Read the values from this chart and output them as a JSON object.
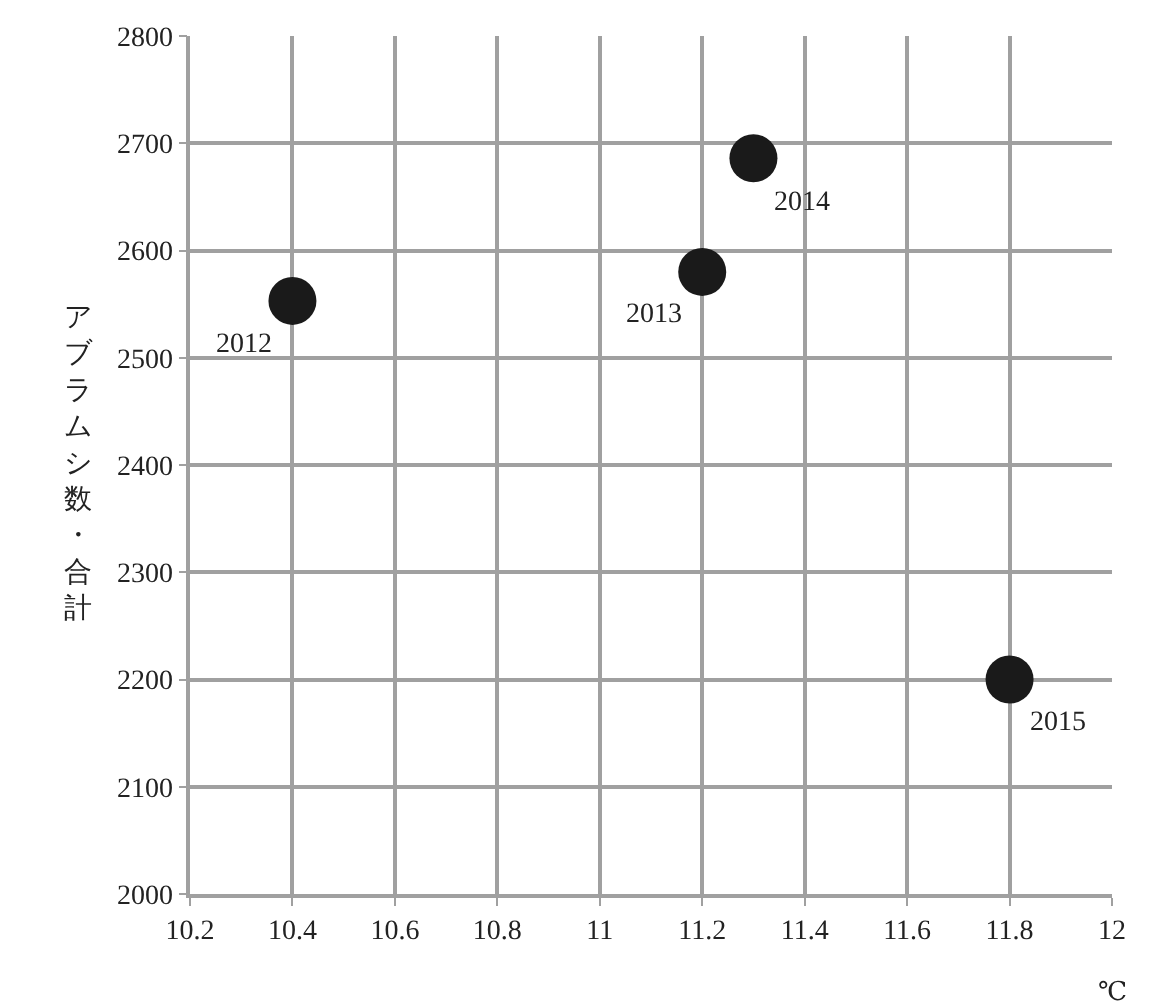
{
  "chart_data": {
    "type": "scatter",
    "xlabel": "℃",
    "ylabel": "アブラムシ数・合計",
    "x": [
      10.4,
      11.2,
      11.3,
      11.8
    ],
    "series": [
      {
        "color": "#1a1a1a",
        "values": [
          2553,
          2580,
          2686,
          2200
        ]
      }
    ],
    "annotations": [
      {
        "text": "2012",
        "x": 10.4,
        "y": 2553
      },
      {
        "text": "2013",
        "x": 11.2,
        "y": 2580
      },
      {
        "text": "2014",
        "x": 11.3,
        "y": 2686
      },
      {
        "text": "2015",
        "x": 11.8,
        "y": 2200
      }
    ],
    "xlim": [
      10.2,
      12
    ],
    "xticks": [
      10.2,
      10.4,
      10.6,
      10.8,
      11,
      11.2,
      11.4,
      11.6,
      11.8,
      12
    ],
    "ylim": [
      2000,
      2800
    ],
    "yticks": [
      2000,
      2100,
      2200,
      2300,
      2400,
      2500,
      2600,
      2700,
      2800
    ],
    "grid": true,
    "marker": "circle"
  }
}
